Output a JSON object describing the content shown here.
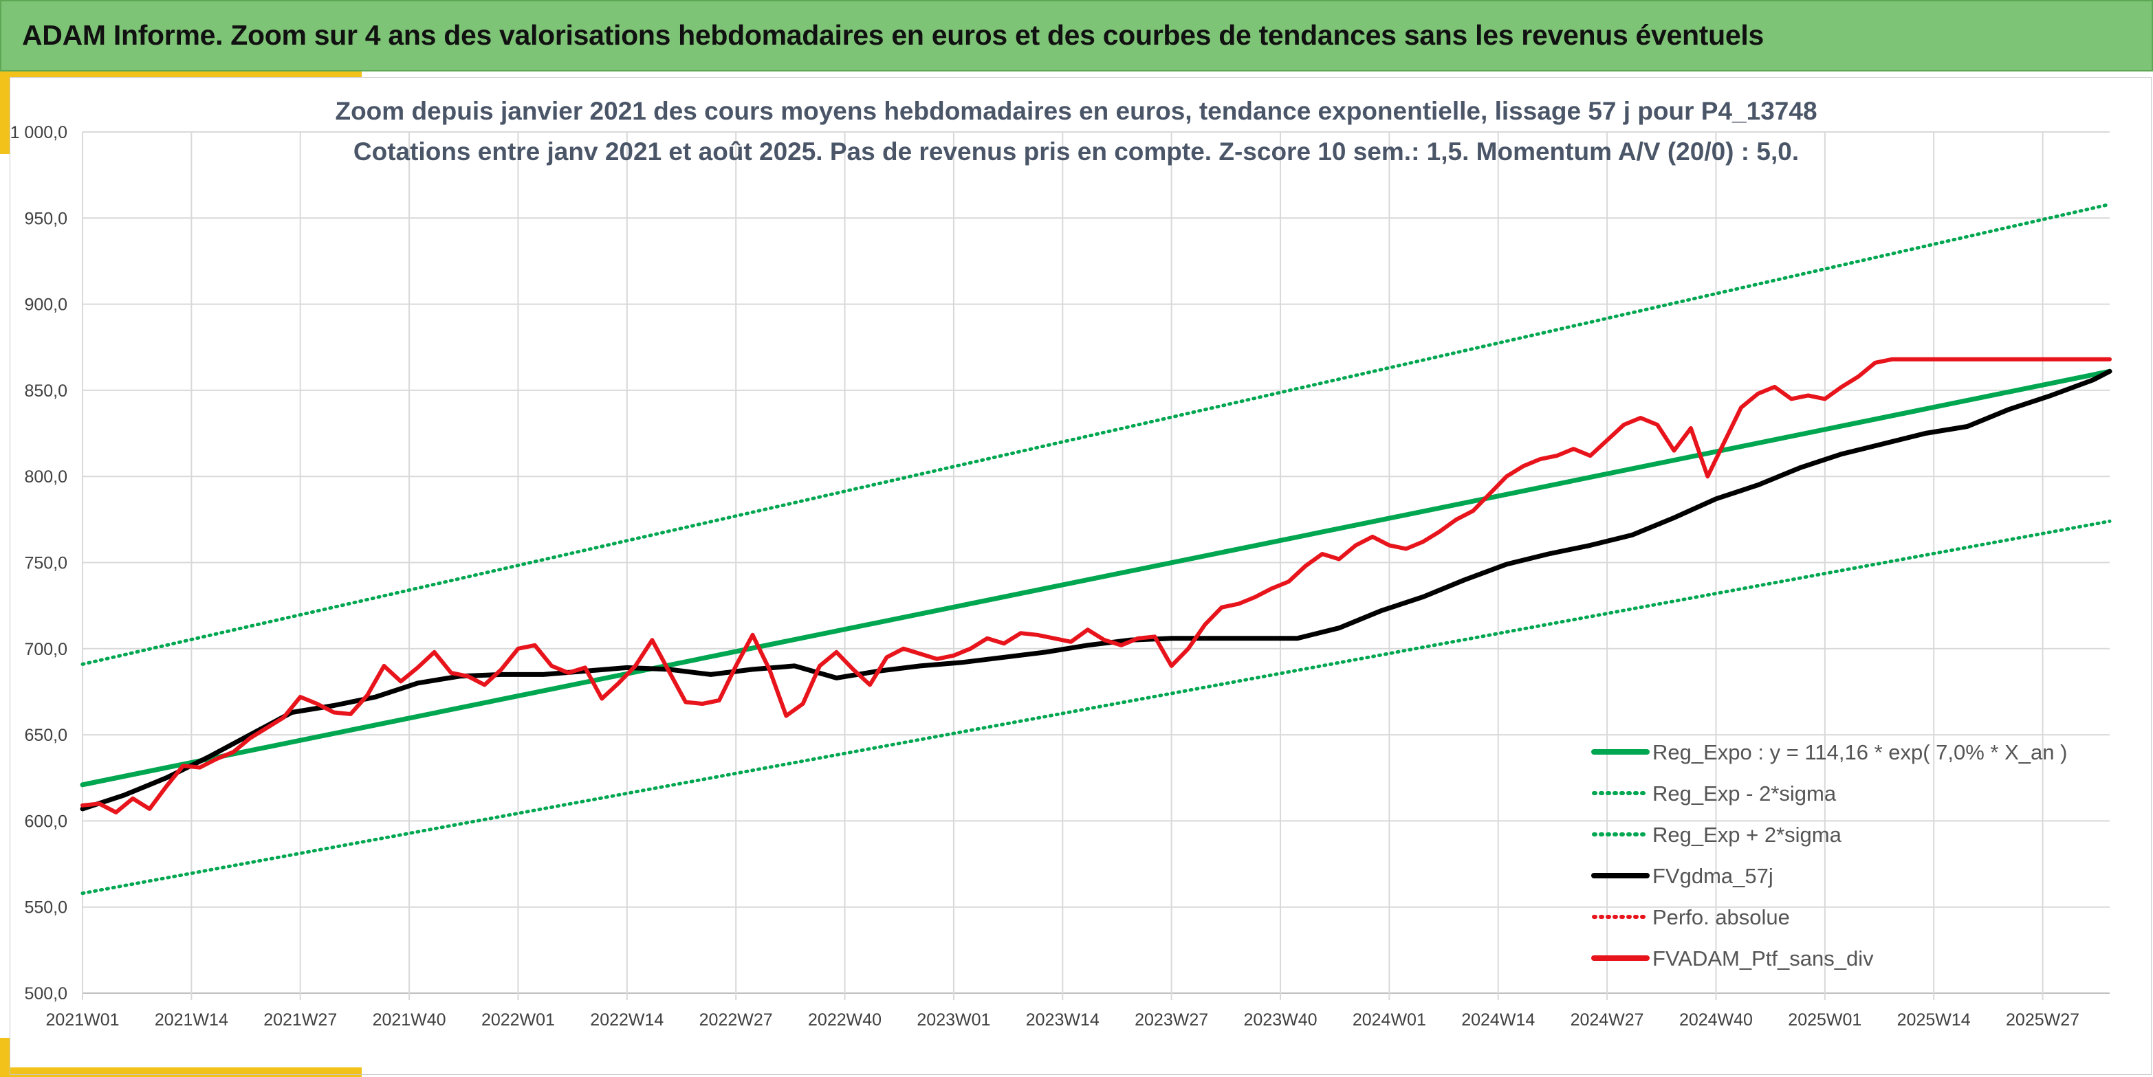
{
  "header": {
    "title": "ADAM Informe. Zoom sur 4 ans des valorisations hebdomadaires en euros et des courbes de tendances sans les revenus éventuels"
  },
  "chart_data": {
    "type": "line",
    "title_lines": [
      "Zoom depuis janvier 2021 des cours moyens hebdomadaires en euros, tendance exponentielle, lissage 57 j pour P4_13748",
      "Cotations entre janv 2021 et août 2025. Pas de revenus pris en compte. Z-score 10 sem.: 1,5. Momentum A/V (20/0) : 5,0."
    ],
    "xlabel": "",
    "ylabel": "",
    "ylim": [
      500,
      1000
    ],
    "y_ticks": [
      "500,0",
      "550,0",
      "600,0",
      "650,0",
      "700,0",
      "750,0",
      "800,0",
      "850,0",
      "900,0",
      "950,0",
      "1 000,0"
    ],
    "x_ticks": [
      "2021W01",
      "2021W14",
      "2021W27",
      "2021W40",
      "2022W01",
      "2022W14",
      "2022W27",
      "2022W40",
      "2023W01",
      "2023W14",
      "2023W27",
      "2023W40",
      "2024W01",
      "2024W14",
      "2024W27",
      "2024W40",
      "2025W01",
      "2025W14",
      "2025W27"
    ],
    "x_tick_index": [
      0,
      13,
      26,
      39,
      52,
      65,
      78,
      91,
      104,
      117,
      130,
      143,
      156,
      169,
      182,
      195,
      208,
      221,
      234
    ],
    "x_max_index": 242,
    "grid": true,
    "legend_position": "bottom-right",
    "colors": {
      "green": "#00a650",
      "black": "#000000",
      "red": "#e8141c"
    },
    "series": [
      {
        "name": "Reg_Expo : y = 114,16 * exp( 7,0% *  X_an )",
        "style": "solid-thick",
        "color": "#00a650",
        "x": [
          0,
          242
        ],
        "y": [
          621,
          861
        ]
      },
      {
        "name": "Reg_Exp - 2*sigma",
        "style": "dotted",
        "color": "#00a650",
        "x": [
          0,
          242
        ],
        "y": [
          558,
          774
        ]
      },
      {
        "name": "Reg_Exp + 2*sigma",
        "style": "dotted",
        "color": "#00a650",
        "x": [
          0,
          242
        ],
        "y": [
          691,
          958
        ]
      },
      {
        "name": "FVgdma_57j",
        "style": "solid-thick",
        "color": "#000000",
        "x": [
          0,
          5,
          10,
          15,
          20,
          25,
          30,
          35,
          40,
          45,
          50,
          55,
          60,
          65,
          70,
          75,
          80,
          85,
          90,
          95,
          100,
          105,
          110,
          115,
          120,
          125,
          130,
          135,
          140,
          145,
          150,
          155,
          160,
          165,
          170,
          175,
          180,
          185,
          190,
          195,
          200,
          205,
          210,
          215,
          220,
          225,
          230,
          235,
          240,
          242
        ],
        "y": [
          607,
          615,
          625,
          637,
          650,
          663,
          667,
          672,
          680,
          684,
          685,
          685,
          687,
          689,
          688,
          685,
          688,
          690,
          683,
          687,
          690,
          692,
          695,
          698,
          702,
          705,
          706,
          706,
          706,
          706,
          712,
          722,
          730,
          740,
          749,
          755,
          760,
          766,
          776,
          787,
          795,
          805,
          813,
          819,
          825,
          829,
          839,
          847,
          856,
          861
        ]
      },
      {
        "name": "Perfo. absolue",
        "style": "dotted",
        "color": "#e8141c",
        "x": [],
        "y": []
      },
      {
        "name": "FVADAM_Ptf_sans_div",
        "style": "solid-thick",
        "color": "#e8141c",
        "x": [
          0,
          2,
          4,
          6,
          8,
          10,
          12,
          14,
          16,
          18,
          20,
          22,
          24,
          26,
          28,
          30,
          32,
          34,
          36,
          38,
          40,
          42,
          44,
          46,
          48,
          50,
          52,
          54,
          56,
          58,
          60,
          62,
          64,
          66,
          68,
          70,
          72,
          74,
          76,
          78,
          80,
          82,
          84,
          86,
          88,
          90,
          92,
          94,
          96,
          98,
          100,
          102,
          104,
          106,
          108,
          110,
          112,
          114,
          116,
          118,
          120,
          122,
          124,
          126,
          128,
          130,
          132,
          134,
          136,
          138,
          140,
          142,
          144,
          146,
          148,
          150,
          152,
          154,
          156,
          158,
          160,
          162,
          164,
          166,
          168,
          170,
          172,
          174,
          176,
          178,
          180,
          182,
          184,
          186,
          188,
          190,
          192,
          194,
          196,
          198,
          200,
          202,
          204,
          206,
          208,
          210,
          212,
          214,
          216,
          218,
          220,
          222,
          224,
          226,
          228,
          230,
          232,
          234,
          236,
          238,
          240,
          242
        ],
        "y": [
          609,
          610,
          605,
          613,
          607,
          620,
          632,
          631,
          636,
          640,
          648,
          654,
          660,
          672,
          668,
          663,
          662,
          673,
          690,
          681,
          689,
          698,
          686,
          684,
          679,
          688,
          700,
          702,
          690,
          686,
          689,
          671,
          680,
          690,
          705,
          687,
          669,
          668,
          670,
          690,
          708,
          688,
          661,
          668,
          690,
          698,
          688,
          679,
          695,
          700,
          697,
          694,
          696,
          700,
          706,
          703,
          709,
          708,
          706,
          704,
          711,
          705,
          702,
          706,
          707,
          690,
          700,
          714,
          724,
          726,
          730,
          735,
          739,
          748,
          755,
          752,
          760,
          765,
          760,
          758,
          762,
          768,
          775,
          780,
          790,
          800,
          806,
          810,
          812,
          816,
          812,
          821,
          830,
          834,
          830,
          815,
          828,
          800,
          820,
          840,
          848,
          852,
          845,
          847,
          845,
          852,
          858,
          866,
          868,
          868,
          868,
          868,
          868,
          868,
          868,
          868,
          868,
          868,
          868,
          868,
          868,
          868
        ]
      }
    ]
  }
}
